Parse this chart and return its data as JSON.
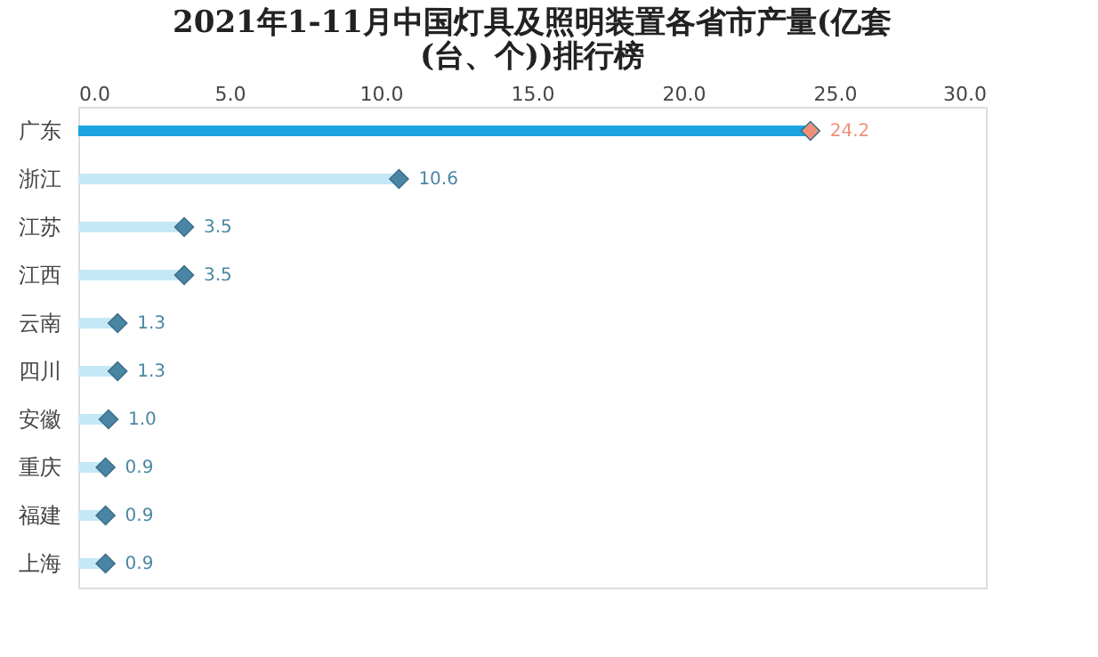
{
  "chart_data": {
    "type": "bar",
    "orientation": "horizontal",
    "title": "2021年1-11月中国灯具及照明装置各省市产量(亿套(台、个))排行榜",
    "categories": [
      "广东",
      "浙江",
      "江苏",
      "江西",
      "云南",
      "四川",
      "安徽",
      "重庆",
      "福建",
      "上海"
    ],
    "series": [
      {
        "values": [
          24.2,
          10.6,
          3.5,
          3.5,
          1.3,
          1.3,
          1.0,
          0.9,
          0.9,
          0.9
        ],
        "colors": [
          "#1aa3e0",
          "#c5e8f7",
          "#c5e8f7",
          "#c5e8f7",
          "#c5e8f7",
          "#c5e8f7",
          "#c5e8f7",
          "#c5e8f7",
          "#c5e8f7",
          "#c5e8f7"
        ]
      },
      {
        "type": "scatter",
        "marker": "diamond",
        "values": [
          24.2,
          10.6,
          3.5,
          3.5,
          1.3,
          1.3,
          1.0,
          0.9,
          0.9,
          0.9
        ],
        "colors": [
          "#f0907a",
          "#4a86a4",
          "#4a86a4",
          "#4a86a4",
          "#4a86a4",
          "#4a86a4",
          "#4a86a4",
          "#4a86a4",
          "#4a86a4",
          "#4a86a4"
        ],
        "value_labels": [
          "24.2",
          "10.6",
          "3.5",
          "3.5",
          "1.3",
          "1.3",
          "1.0",
          "0.9",
          "0.9",
          "0.9"
        ]
      }
    ],
    "xlim": [
      0,
      30
    ],
    "xticks": [
      {
        "value": 0,
        "label": "0.0"
      },
      {
        "value": 5,
        "label": "5.0"
      },
      {
        "value": 10,
        "label": "10.0"
      },
      {
        "value": 15,
        "label": "15.0"
      },
      {
        "value": 20,
        "label": "20.0"
      },
      {
        "value": 25,
        "label": "25.0"
      },
      {
        "value": 30,
        "label": "30.0"
      }
    ],
    "grid": false
  }
}
